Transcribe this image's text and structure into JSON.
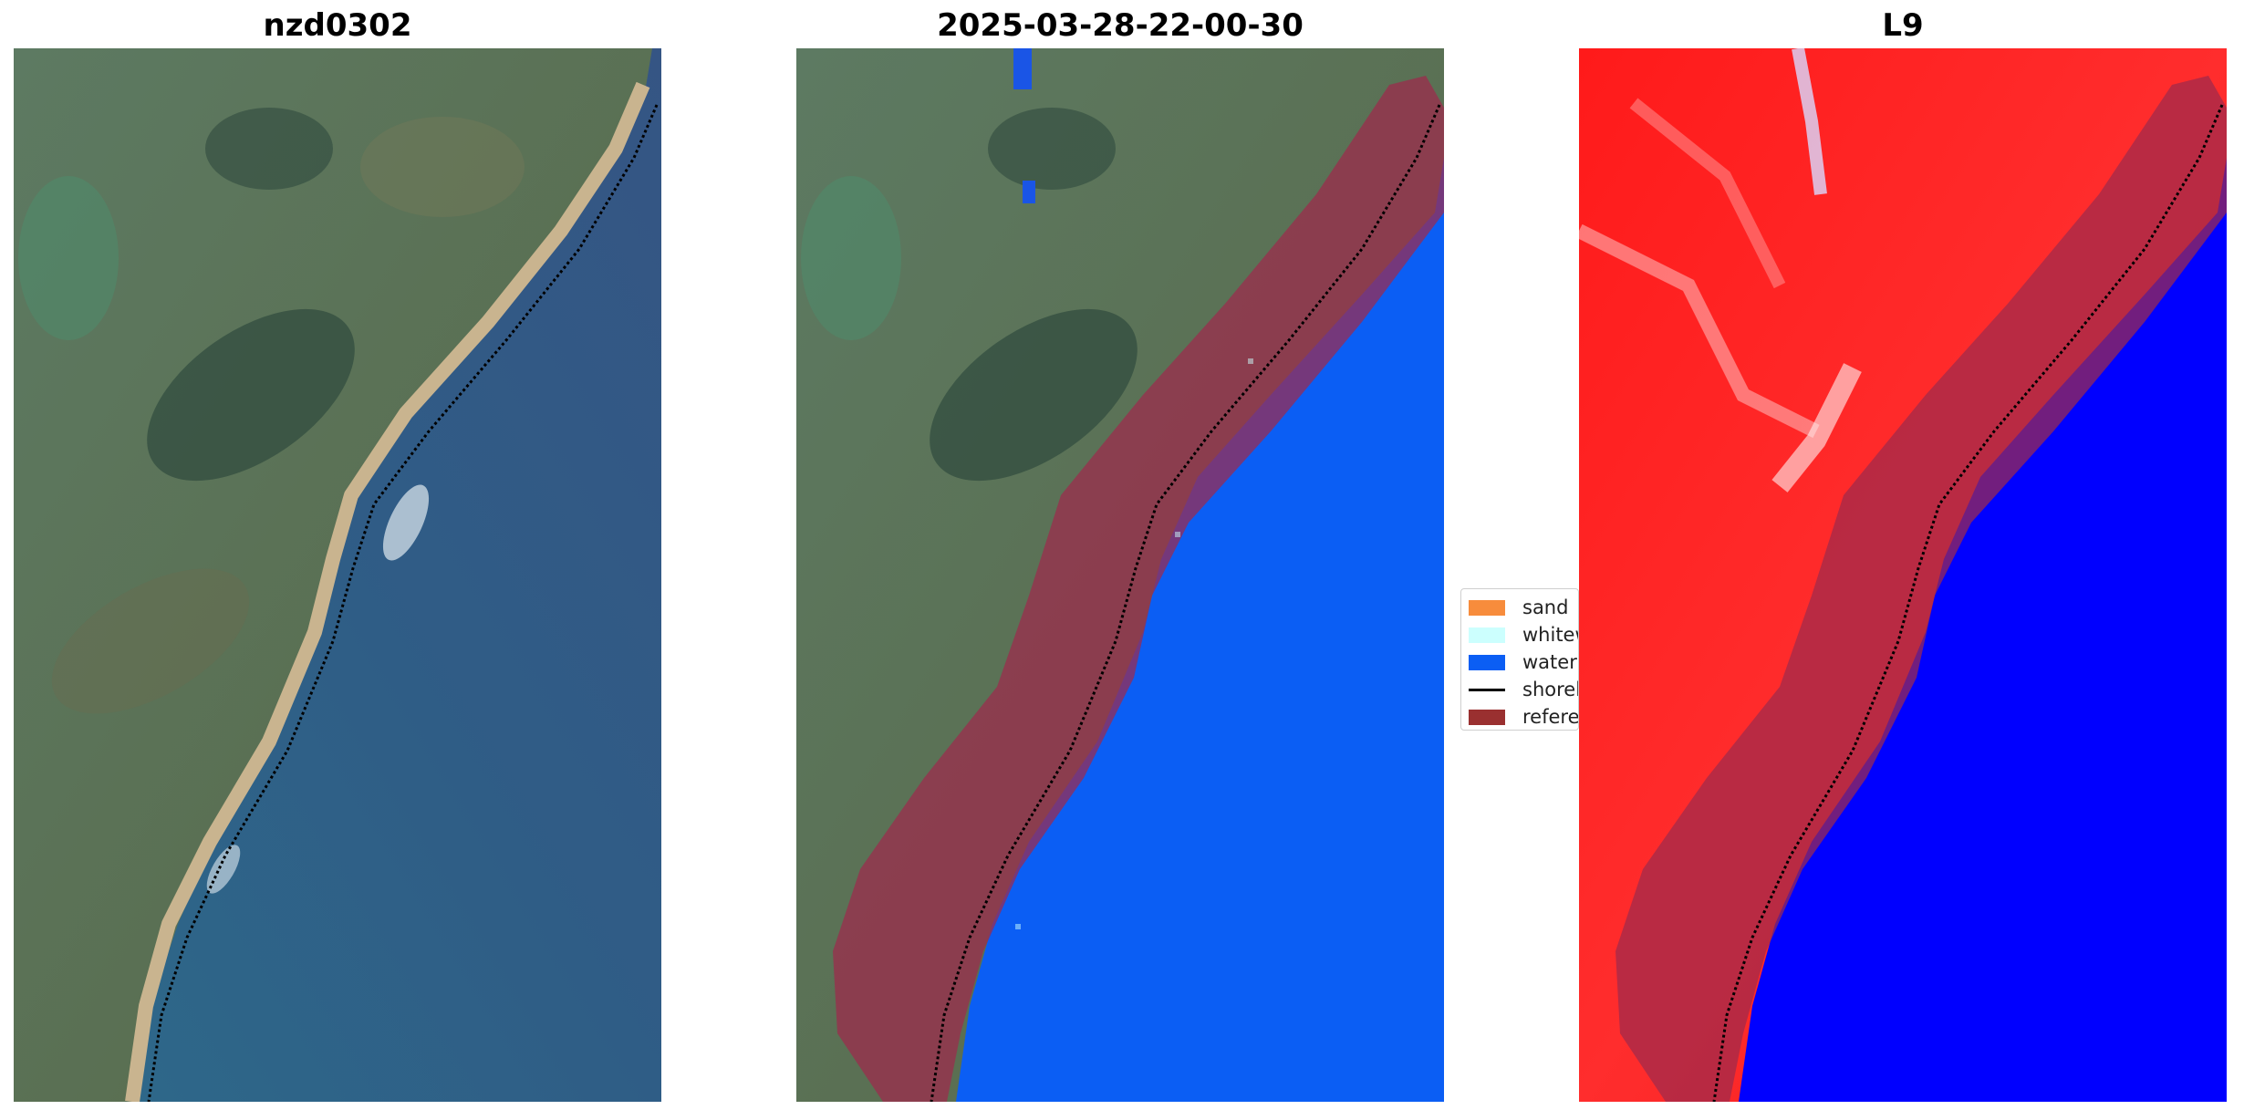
{
  "panels": {
    "rgb": {
      "title": "nzd0302"
    },
    "classification": {
      "title": "2025-03-28-22-00-30"
    },
    "index": {
      "title": "L9"
    }
  },
  "legend": {
    "items": [
      {
        "label": "sand",
        "color": "#f78c3c",
        "kind": "patch"
      },
      {
        "label": "whitew",
        "color": "#ccfffe",
        "kind": "patch"
      },
      {
        "label": "water",
        "color": "#0b5ef4",
        "kind": "patch"
      },
      {
        "label": "shorel",
        "color": "#000000",
        "kind": "line"
      },
      {
        "label": "referen",
        "color": "#9a3030",
        "kind": "patch"
      }
    ]
  },
  "colors": {
    "land": "#56705a",
    "ocean": "#2f5d86",
    "beach": "#c9b48f",
    "classified_water": "#0b5ef4",
    "reference_zone": "#9e2a4c",
    "index_positive": "#ff1414",
    "index_negative": "#0000ff"
  },
  "icons": {
    "legend_sand": "orange-patch",
    "legend_whitewater": "cyan-patch",
    "legend_water": "blue-patch",
    "legend_shoreline": "black-line",
    "legend_reference": "darkred-patch"
  }
}
